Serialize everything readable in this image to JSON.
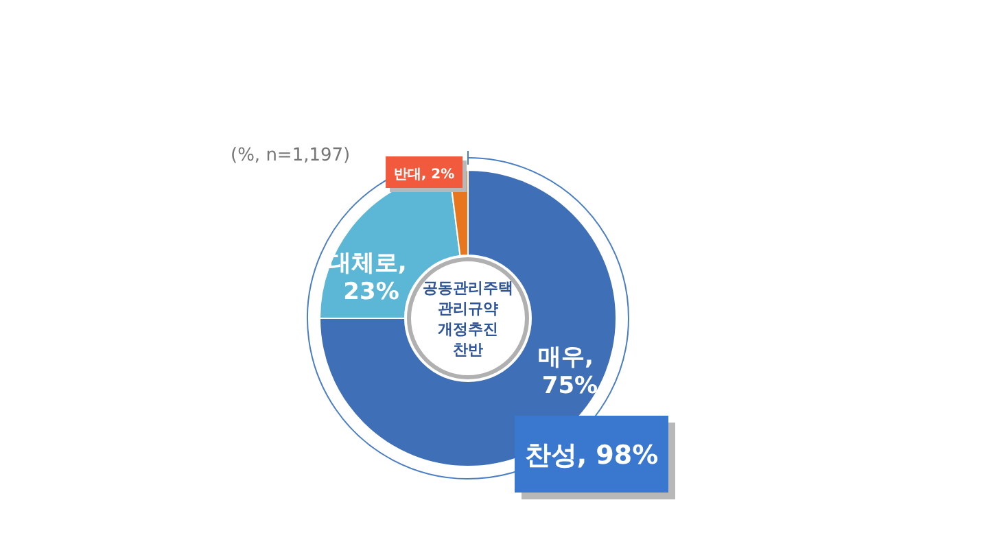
{
  "chart_data": {
    "type": "donut",
    "title": "공동관리주택\n관리규약\n개정추진\n찬반",
    "values": [
      75,
      23,
      2
    ],
    "value_labels": [
      "매우, 75%",
      "대체로, 23%",
      "반대, 2%"
    ],
    "colors": [
      "#3f6fb6",
      "#5cb6d6",
      "#e8761e"
    ],
    "annotations": [
      "(%, n=1,197)",
      "찬성, 98%"
    ]
  }
}
